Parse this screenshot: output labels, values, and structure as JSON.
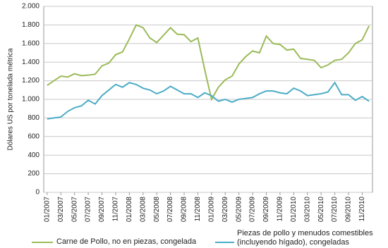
{
  "chart_data": {
    "type": "line",
    "y_label": "Dólares US por tonelada métrica",
    "categories": [
      "01/2007",
      null,
      "03/2007",
      null,
      "05/2007",
      null,
      "07/2007",
      null,
      "09/2007",
      null,
      "11/2007",
      null,
      "01/2008",
      null,
      "03/2008",
      null,
      "05/2008",
      null,
      "07/2008",
      null,
      "09/2008",
      null,
      "11/2008",
      null,
      "01/2009",
      null,
      "03/2009",
      null,
      "05/2009",
      null,
      "07/2009",
      null,
      "09/2009",
      null,
      "11/2009",
      null,
      "01/2010",
      null,
      "03/2010",
      null,
      "05/2010",
      null,
      "07/2010",
      null,
      "09/2010",
      null,
      "11/2010",
      null
    ],
    "series": [
      {
        "name": "Carne de Pollo, no en piezas, congelada",
        "color": "#9bbb59",
        "values": [
          1150,
          1200,
          1250,
          1240,
          1275,
          1255,
          1260,
          1270,
          1360,
          1390,
          1480,
          1510,
          1650,
          1800,
          1770,
          1660,
          1610,
          1690,
          1770,
          1700,
          1695,
          1620,
          1660,
          1320,
          1000,
          1130,
          1210,
          1250,
          1380,
          1460,
          1520,
          1500,
          1680,
          1600,
          1590,
          1530,
          1540,
          1440,
          1430,
          1420,
          1340,
          1370,
          1420,
          1430,
          1500,
          1600,
          1640,
          1790
        ]
      },
      {
        "name": "Piezas de pollo y menudos comestibles (incluyendo hígado), congeladas",
        "color": "#4bacc6",
        "values": [
          790,
          800,
          810,
          870,
          910,
          930,
          990,
          950,
          1040,
          1100,
          1160,
          1130,
          1180,
          1160,
          1120,
          1100,
          1060,
          1090,
          1140,
          1100,
          1060,
          1060,
          1020,
          1070,
          1040,
          980,
          1000,
          970,
          1000,
          1010,
          1020,
          1060,
          1090,
          1090,
          1070,
          1060,
          1120,
          1090,
          1040,
          1050,
          1060,
          1080,
          1180,
          1050,
          1050,
          990,
          1030,
          980
        ]
      }
    ],
    "ylim": [
      0,
      2000
    ],
    "yticks": [
      0,
      200,
      400,
      600,
      800,
      {
        "value": 1000,
        "label": "1.000"
      },
      {
        "value": 1200,
        "label": "1.200"
      },
      {
        "value": 1400,
        "label": "1.400"
      },
      {
        "value": 1600,
        "label": "1.600"
      },
      {
        "value": 1800,
        "label": "1.800"
      },
      {
        "value": 2000,
        "label": "2.000"
      }
    ],
    "grid": true
  }
}
